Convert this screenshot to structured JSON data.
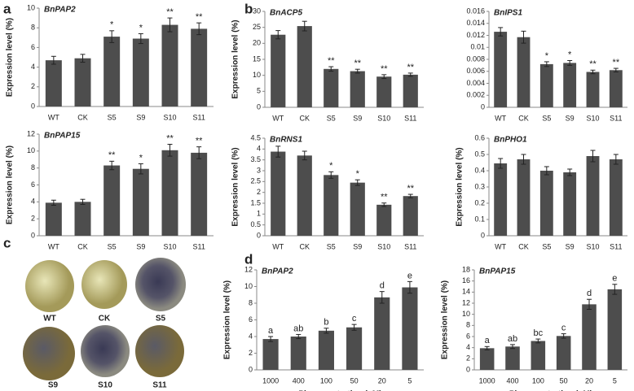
{
  "chart_data": [
    {
      "type": "bar",
      "title": "BnPAP2",
      "y_label": "Expression level (%)",
      "categories": [
        "WT",
        "CK",
        "S5",
        "S9",
        "S10",
        "S11"
      ],
      "values": [
        4.7,
        4.9,
        7.1,
        6.9,
        8.3,
        7.9
      ],
      "errors": [
        0.4,
        0.4,
        0.6,
        0.5,
        0.7,
        0.6
      ],
      "significance": [
        null,
        null,
        "*",
        "*",
        "**",
        "**"
      ],
      "color": "#4d4d4d",
      "ylim": [
        0,
        10
      ],
      "yticks": [
        0,
        2,
        4,
        6,
        8,
        10
      ]
    },
    {
      "type": "bar",
      "title": "BnPAP15",
      "y_label": "Expression level (%)",
      "categories": [
        "WT",
        "CK",
        "S5",
        "S9",
        "S10",
        "S11"
      ],
      "values": [
        3.9,
        4.0,
        8.3,
        7.9,
        10.1,
        9.8
      ],
      "errors": [
        0.3,
        0.3,
        0.5,
        0.6,
        0.7,
        0.7
      ],
      "significance": [
        null,
        null,
        "**",
        "*",
        "**",
        "**"
      ],
      "color": "#4d4d4d",
      "ylim": [
        0,
        12
      ],
      "yticks": [
        0,
        2,
        4,
        6,
        8,
        10,
        12
      ]
    },
    {
      "type": "bar",
      "title": "BnACP5",
      "y_label": "Expression level (%)",
      "categories": [
        "WT",
        "CK",
        "S5",
        "S9",
        "S10",
        "S11"
      ],
      "values": [
        22.7,
        25.4,
        12.0,
        11.3,
        9.6,
        10.2
      ],
      "errors": [
        1.3,
        1.5,
        0.7,
        0.6,
        0.6,
        0.5
      ],
      "significance": [
        null,
        null,
        "**",
        "**",
        "**",
        "**"
      ],
      "color": "#4d4d4d",
      "ylim": [
        0,
        30
      ],
      "yticks": [
        0,
        5,
        10,
        15,
        20,
        25,
        30
      ]
    },
    {
      "type": "bar",
      "title": "BnIPS1",
      "categories": [
        "WT",
        "CK",
        "S5",
        "S9",
        "S10",
        "S11"
      ],
      "values": [
        0.0126,
        0.0117,
        0.0072,
        0.0074,
        0.0059,
        0.0062
      ],
      "errors": [
        0.0007,
        0.001,
        0.0004,
        0.0004,
        0.0003,
        0.0003
      ],
      "significance": [
        null,
        null,
        "*",
        "*",
        "**",
        "**"
      ],
      "color": "#4d4d4d",
      "ylim": [
        0,
        0.016
      ],
      "yticks": [
        0,
        0.002,
        0.004,
        0.006,
        0.008,
        0.01,
        0.012,
        0.014,
        0.016
      ]
    },
    {
      "type": "bar",
      "title": "BnRNS1",
      "y_label": "Expression level (%)",
      "categories": [
        "WT",
        "CK",
        "S5",
        "S9",
        "S10",
        "S11"
      ],
      "values": [
        3.88,
        3.7,
        2.8,
        2.45,
        1.43,
        1.83
      ],
      "errors": [
        0.25,
        0.2,
        0.15,
        0.13,
        0.08,
        0.08
      ],
      "significance": [
        null,
        null,
        "*",
        "*",
        "**",
        "**"
      ],
      "color": "#4d4d4d",
      "ylim": [
        0,
        4.5
      ],
      "yticks": [
        0,
        0.5,
        1,
        1.5,
        2,
        2.5,
        3,
        3.5,
        4,
        4.5
      ]
    },
    {
      "type": "bar",
      "title": "BnPHO1",
      "y_label": "Expression level (%)",
      "categories": [
        "WT",
        "CK",
        "S5",
        "S9",
        "S10",
        "S11"
      ],
      "values": [
        0.445,
        0.47,
        0.4,
        0.39,
        0.49,
        0.47
      ],
      "errors": [
        0.03,
        0.03,
        0.025,
        0.02,
        0.035,
        0.03
      ],
      "color": "#4d4d4d",
      "ylim": [
        0,
        0.6
      ],
      "yticks": [
        0,
        0.1,
        0.2,
        0.3,
        0.4,
        0.5,
        0.6
      ]
    },
    {
      "type": "bar",
      "title": "BnPAP2",
      "y_label": "Expression level (%)",
      "x_label": "Pi concentration  (uM)",
      "categories": [
        "1000",
        "400",
        "100",
        "50",
        "20",
        "5"
      ],
      "values": [
        3.7,
        4.0,
        4.7,
        5.1,
        8.7,
        9.9
      ],
      "errors": [
        0.3,
        0.25,
        0.3,
        0.35,
        0.7,
        0.7
      ],
      "significance": [
        "a",
        "ab",
        "b",
        "c",
        "d",
        "e"
      ],
      "color": "#4d4d4d",
      "ylim": [
        0,
        12
      ],
      "yticks": [
        0,
        2,
        4,
        6,
        8,
        10,
        12
      ]
    },
    {
      "type": "bar",
      "title": "BnPAP15",
      "y_label": "Expression level (%)",
      "x_label": "Pi concentration  (uM)",
      "categories": [
        "1000",
        "400",
        "100",
        "50",
        "20",
        "5"
      ],
      "values": [
        3.9,
        4.2,
        5.2,
        6.1,
        11.8,
        14.5
      ],
      "errors": [
        0.3,
        0.35,
        0.35,
        0.4,
        0.9,
        0.9
      ],
      "significance": [
        "a",
        "ab",
        "bc",
        "c",
        "d",
        "e"
      ],
      "color": "#4d4d4d",
      "ylim": [
        0,
        18
      ],
      "yticks": [
        0,
        2,
        4,
        6,
        8,
        10,
        12,
        14,
        16,
        18
      ]
    }
  ],
  "panels": {
    "labels": [
      "a",
      "b",
      "c",
      "d"
    ]
  },
  "seed_images": {
    "labels": [
      "WT",
      "CK",
      "S5",
      "S9",
      "S10",
      "S11"
    ]
  }
}
